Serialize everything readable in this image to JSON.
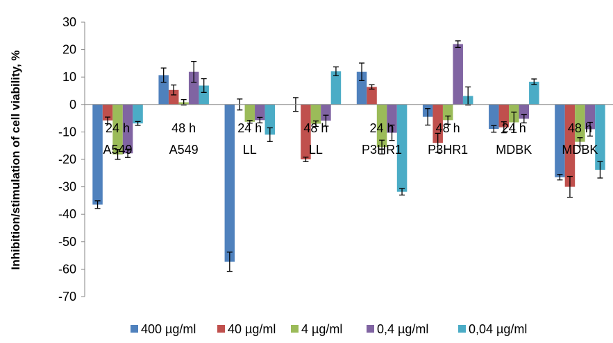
{
  "chart_data": {
    "type": "bar",
    "title": "",
    "xlabel": "",
    "ylabel": "Inhibition/stimulation of cell viability, %",
    "ylim": [
      -70,
      30
    ],
    "yticks": [
      30,
      20,
      10,
      0,
      -10,
      -20,
      -30,
      -40,
      -50,
      -60,
      -70
    ],
    "grid": false,
    "legend_position": "bottom",
    "categories": [
      [
        "24 h",
        "A549"
      ],
      [
        "48 h",
        "A549"
      ],
      [
        "24 h",
        "LL"
      ],
      [
        "48 h",
        "LL"
      ],
      [
        "24 h",
        "P3HR1"
      ],
      [
        "48 h",
        "P3HR1"
      ],
      [
        "24 h",
        "MDBK"
      ],
      [
        "48 h",
        "MDBK"
      ]
    ],
    "series": [
      {
        "name": "400 µg/ml",
        "color": "#4F81BD",
        "values": [
          -36.5,
          10.7,
          -57.3,
          0.0,
          11.9,
          -4.5,
          -8.9,
          -26.5
        ],
        "errors": [
          1.4,
          2.6,
          3.5,
          2.5,
          3.2,
          3.0,
          1.2,
          1.0
        ]
      },
      {
        "name": "40 µg/ml",
        "color": "#C0504D",
        "values": [
          -5.8,
          5.3,
          0.0,
          -20.0,
          6.4,
          -14.0,
          -8.3,
          -30.0
        ],
        "errors": [
          1.2,
          1.8,
          2.0,
          0.8,
          0.8,
          3.5,
          2.0,
          3.8
        ]
      },
      {
        "name": "4 µg/ml",
        "color": "#9BBB59",
        "values": [
          -18.2,
          0.8,
          -6.3,
          -7.0,
          -15.5,
          -5.7,
          -6.5,
          -13.6
        ],
        "errors": [
          1.8,
          1.0,
          0.5,
          1.0,
          2.5,
          1.5,
          3.7,
          1.5
        ]
      },
      {
        "name": "0,4 µg/ml",
        "color": "#8064A2",
        "values": [
          -17.8,
          11.9,
          -5.7,
          -5.9,
          -10.3,
          22.0,
          -5.2,
          -9.0
        ],
        "errors": [
          1.5,
          3.8,
          1.0,
          2.0,
          2.8,
          1.2,
          1.5,
          2.5
        ]
      },
      {
        "name": "0,04 µg/ml",
        "color": "#4BACC6",
        "values": [
          -6.9,
          6.9,
          -11.0,
          12.1,
          -31.8,
          3.1,
          8.3,
          -23.8
        ],
        "errors": [
          0.7,
          2.5,
          2.5,
          1.6,
          1.2,
          3.3,
          1.0,
          3.0
        ]
      }
    ]
  }
}
